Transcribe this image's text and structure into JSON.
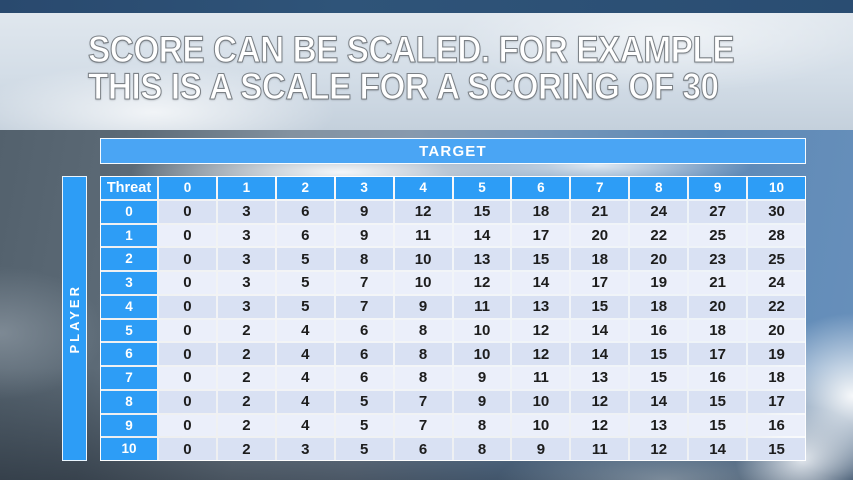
{
  "title": {
    "line1": "SCORE CAN BE SCALED. FOR EXAMPLE",
    "line2": "THIS IS A SCALE FOR A SCORING OF 30"
  },
  "table": {
    "target_label": "TARGET",
    "player_label": "PLAYER",
    "corner_label": "Threat"
  },
  "chart_data": {
    "type": "table",
    "title": "SCORE CAN BE SCALED. FOR EXAMPLE THIS IS A SCALE FOR A SCORING OF 30",
    "col_axis_label": "TARGET",
    "row_axis_label": "PLAYER",
    "corner_label": "Threat",
    "col_headers": [
      "0",
      "1",
      "2",
      "3",
      "4",
      "5",
      "6",
      "7",
      "8",
      "9",
      "10"
    ],
    "row_headers": [
      "0",
      "1",
      "2",
      "3",
      "4",
      "5",
      "6",
      "7",
      "8",
      "9",
      "10"
    ],
    "rows": [
      [
        0,
        3,
        6,
        9,
        12,
        15,
        18,
        21,
        24,
        27,
        30
      ],
      [
        0,
        3,
        6,
        9,
        11,
        14,
        17,
        20,
        22,
        25,
        28
      ],
      [
        0,
        3,
        5,
        8,
        10,
        13,
        15,
        18,
        20,
        23,
        25
      ],
      [
        0,
        3,
        5,
        7,
        10,
        12,
        14,
        17,
        19,
        21,
        24
      ],
      [
        0,
        3,
        5,
        7,
        9,
        11,
        13,
        15,
        18,
        20,
        22
      ],
      [
        0,
        2,
        4,
        6,
        8,
        10,
        12,
        14,
        16,
        18,
        20
      ],
      [
        0,
        2,
        4,
        6,
        8,
        10,
        12,
        14,
        15,
        17,
        19
      ],
      [
        0,
        2,
        4,
        6,
        8,
        9,
        11,
        13,
        15,
        16,
        18
      ],
      [
        0,
        2,
        4,
        5,
        7,
        9,
        10,
        12,
        14,
        15,
        17
      ],
      [
        0,
        2,
        4,
        5,
        7,
        8,
        10,
        12,
        13,
        15,
        16
      ],
      [
        0,
        2,
        3,
        5,
        6,
        8,
        9,
        11,
        12,
        14,
        15
      ]
    ]
  },
  "colors": {
    "accent_blue": "#2d9df6",
    "target_bar_blue": "#4aa5f4",
    "band_even": "#d9e1f3",
    "band_odd": "#ebeffa",
    "cell_text": "#1d1d1d"
  }
}
